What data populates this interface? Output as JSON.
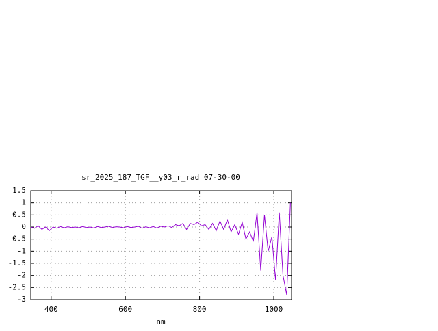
{
  "chart_data": {
    "type": "line",
    "title": "sr_2025_187_TGF__y03_r_rad 07-30-00",
    "x_label": "nm",
    "x": [
      345,
      355,
      365,
      375,
      385,
      395,
      405,
      415,
      425,
      435,
      445,
      455,
      465,
      475,
      485,
      495,
      505,
      515,
      525,
      535,
      545,
      555,
      565,
      575,
      585,
      595,
      605,
      615,
      625,
      635,
      645,
      655,
      665,
      675,
      685,
      695,
      705,
      715,
      725,
      735,
      745,
      755,
      765,
      775,
      785,
      795,
      805,
      815,
      825,
      835,
      845,
      855,
      865,
      875,
      885,
      895,
      905,
      915,
      925,
      935,
      945,
      955,
      965,
      975,
      985,
      995,
      1005,
      1015,
      1025,
      1035,
      1045
    ],
    "series": [
      {
        "color": "#9400d3",
        "values": [
          0.0,
          -0.05,
          0.05,
          -0.1,
          0.0,
          -0.15,
          0.0,
          -0.05,
          0.02,
          -0.03,
          0.01,
          -0.02,
          0.0,
          -0.03,
          0.02,
          -0.02,
          0.0,
          -0.04,
          0.02,
          -0.02,
          0.0,
          0.03,
          -0.02,
          0.01,
          0.0,
          -0.03,
          0.02,
          -0.02,
          0.0,
          0.03,
          -0.05,
          0.01,
          -0.03,
          0.02,
          -0.04,
          0.03,
          0.0,
          0.05,
          -0.02,
          0.1,
          0.05,
          0.15,
          -0.1,
          0.15,
          0.1,
          0.2,
          0.05,
          0.1,
          -0.1,
          0.15,
          -0.15,
          0.25,
          -0.1,
          0.3,
          -0.2,
          0.1,
          -0.3,
          0.2,
          -0.5,
          -0.2,
          -0.6,
          0.6,
          -1.8,
          0.5,
          -1.0,
          -0.4,
          -2.2,
          0.6,
          -2.0,
          -2.8,
          1.0
        ]
      }
    ],
    "xlim": [
      345,
      1048
    ],
    "ylim": [
      -3,
      1.5
    ],
    "xticks": [
      400,
      600,
      800,
      1000
    ],
    "yticks": [
      1.5,
      1,
      0.5,
      0,
      -0.5,
      -1,
      -1.5,
      -2,
      -2.5,
      -3
    ],
    "grid": true
  }
}
